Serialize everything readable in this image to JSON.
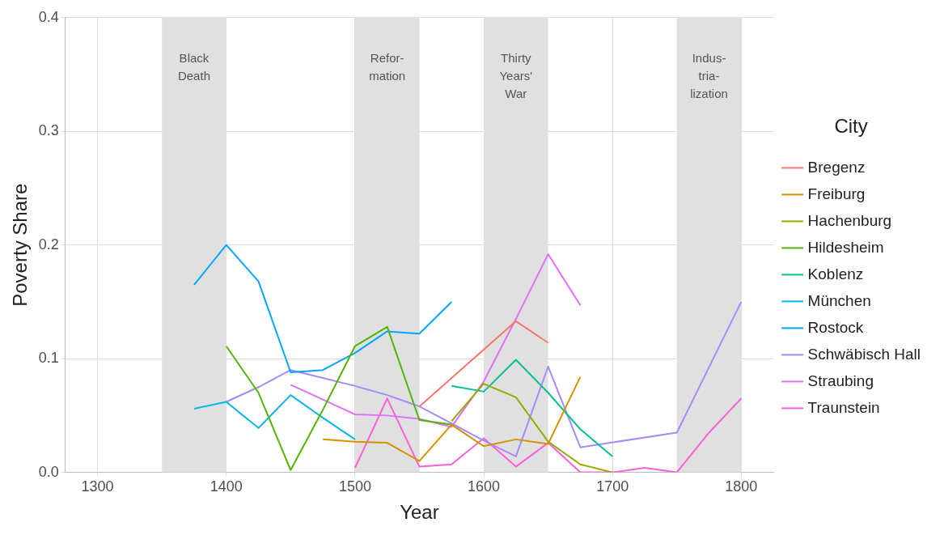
{
  "chart_data": {
    "type": "line",
    "xlabel": "Year",
    "ylabel": "Poverty Share",
    "legend_title": "City",
    "legend": "right",
    "grid": true,
    "marker": "none",
    "line_style": "solid",
    "xlim": [
      1275,
      1825
    ],
    "xticks": [
      1300,
      1400,
      1500,
      1600,
      1700,
      1800
    ],
    "ylim": [
      0,
      0.4
    ],
    "yticks": [
      {
        "value": 0,
        "label": "0.0"
      },
      {
        "value": 0.1,
        "label": "0.1"
      },
      {
        "value": 0.2,
        "label": "0.2"
      },
      {
        "value": 0.3,
        "label": "0.3"
      },
      {
        "value": 0.4,
        "label": "0.4"
      }
    ],
    "bands": [
      {
        "axis": "x",
        "from": 1350,
        "to": 1400,
        "label": "Black\nDeath",
        "color": "#e0e0e0"
      },
      {
        "axis": "x",
        "from": 1500,
        "to": 1550,
        "label": "Refor-\nmation",
        "color": "#e0e0e0"
      },
      {
        "axis": "x",
        "from": 1600,
        "to": 1650,
        "label": "Thirty\nYears'\nWar",
        "color": "#e0e0e0"
      },
      {
        "axis": "x",
        "from": 1750,
        "to": 1800,
        "label": "Indus-\ntria-\nlization",
        "color": "#e0e0e0"
      }
    ],
    "series": [
      {
        "name": "Bregenz",
        "color": "#f8766d",
        "x": [
          1550,
          1625,
          1650
        ],
        "values": [
          0.058,
          0.133,
          0.114
        ]
      },
      {
        "name": "Freiburg",
        "color": "#d39200",
        "x": [
          1475,
          1500,
          1525,
          1550,
          1575,
          1600,
          1625,
          1650,
          1675
        ],
        "values": [
          0.029,
          0.027,
          0.026,
          0.01,
          0.042,
          0.023,
          0.029,
          0.025,
          0.084
        ]
      },
      {
        "name": "Hachenburg",
        "color": "#93aa00",
        "x": [
          1575,
          1600,
          1625,
          1650,
          1675,
          1700
        ],
        "values": [
          0.045,
          0.078,
          0.066,
          0.027,
          0.007,
          0.0
        ]
      },
      {
        "name": "Hildesheim",
        "color": "#53b400",
        "x": [
          1400,
          1425,
          1450,
          1475,
          1500,
          1525,
          1550,
          1575
        ],
        "values": [
          0.111,
          0.07,
          0.002,
          0.055,
          0.111,
          0.128,
          0.046,
          0.042
        ]
      },
      {
        "name": "Koblenz",
        "color": "#00c094",
        "x": [
          1575,
          1600,
          1625,
          1650,
          1675,
          1700
        ],
        "values": [
          0.076,
          0.071,
          0.099,
          0.07,
          0.038,
          0.014
        ]
      },
      {
        "name": "München",
        "color": "#00b6eb",
        "x": [
          1375,
          1400,
          1425,
          1450,
          1475,
          1500
        ],
        "values": [
          0.056,
          0.062,
          0.039,
          0.068,
          0.048,
          0.029
        ]
      },
      {
        "name": "Rostock",
        "color": "#06a4ff",
        "x": [
          1375,
          1400,
          1425,
          1450,
          1475,
          1500,
          1525,
          1550,
          1575
        ],
        "values": [
          0.165,
          0.2,
          0.168,
          0.088,
          0.09,
          0.105,
          0.124,
          0.122,
          0.15
        ]
      },
      {
        "name": "Schwäbisch Hall",
        "color": "#a58aff",
        "x": [
          1400,
          1425,
          1450,
          1475,
          1500,
          1525,
          1550,
          1575,
          1600,
          1625,
          1650,
          1675,
          1750,
          1800
        ],
        "values": [
          0.062,
          0.075,
          0.09,
          0.083,
          0.076,
          0.068,
          0.058,
          0.043,
          0.028,
          0.014,
          0.093,
          0.022,
          0.035,
          0.15
        ]
      },
      {
        "name": "Straubing",
        "color": "#df70f8",
        "x": [
          1450,
          1475,
          1500,
          1525,
          1550,
          1575,
          1600,
          1625,
          1650,
          1675
        ],
        "values": [
          0.077,
          0.064,
          0.051,
          0.05,
          0.047,
          0.04,
          0.08,
          0.135,
          0.192,
          0.147
        ]
      },
      {
        "name": "Traunstein",
        "color": "#fb61d7",
        "x": [
          1500,
          1525,
          1550,
          1575,
          1600,
          1625,
          1650,
          1675,
          1700,
          1725,
          1750,
          1775,
          1800
        ],
        "values": [
          0.004,
          0.065,
          0.005,
          0.007,
          0.03,
          0.005,
          0.026,
          0.0,
          0.0,
          0.004,
          0.0,
          0.035,
          0.065
        ]
      }
    ]
  }
}
